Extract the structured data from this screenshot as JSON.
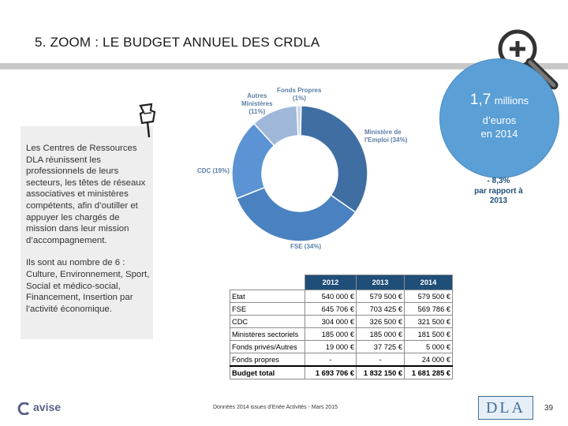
{
  "slide": {
    "title": "5. ZOOM : LE BUDGET ANNUEL DES CRDLA"
  },
  "left_panel": {
    "paragraph1": "Les Centres de Ressources DLA réunissent les professionnels de leurs secteurs, les têtes de réseaux associatives et ministères compétents, afin d’outiller et appuyer les chargés de mission dans leur mission d’accompagnement.",
    "paragraph2": "Ils sont au nombre de 6 : Culture, Environnement, Sport, Social et médico-social, Financement, Insertion par l’activité économique."
  },
  "highlight": {
    "amount": "1,7",
    "unit": "millions",
    "line2": "d’euros",
    "line3": "en 2014",
    "change_line1": "- 8,3%",
    "change_line2": "par rapport à",
    "change_line3": "2013",
    "circle_color": "#5a9fd6"
  },
  "chart_data": {
    "type": "pie",
    "title": "",
    "slices": [
      {
        "label": "Ministère de l'Emploi (34%)",
        "value": 34,
        "color": "#3f6ea3"
      },
      {
        "label": "FSE (34%)",
        "value": 34,
        "color": "#4a82c1"
      },
      {
        "label": "CDC (19%)",
        "value": 19,
        "color": "#5b93d4"
      },
      {
        "label": "Autres Ministères (11%)",
        "value": 11,
        "color": "#9fb8da"
      },
      {
        "label": "Fonds Propres (1%)",
        "value": 1,
        "color": "#c9d6e8"
      }
    ],
    "labels": {
      "emploi_line1": "Ministère de",
      "emploi_line2": "l'Emploi (34%)",
      "fse": "FSE (34%)",
      "cdc": "CDC (19%)",
      "autres_line1": "Autres",
      "autres_line2": "Ministères",
      "autres_line3": "(11%)",
      "propres_line1": "Fonds Propres",
      "propres_line2": "(1%)"
    }
  },
  "table": {
    "headers": [
      "2012",
      "2013",
      "2014"
    ],
    "rows": [
      {
        "label": "Etat",
        "v2012": "540 000 €",
        "v2013": "579 500 €",
        "v2014": "579 500 €"
      },
      {
        "label": "FSE",
        "v2012": "645 706 €",
        "v2013": "703 425 €",
        "v2014": "569 786 €"
      },
      {
        "label": "CDC",
        "v2012": "304 000 €",
        "v2013": "326 500 €",
        "v2014": "321 500 €"
      },
      {
        "label": "Ministères sectoriels",
        "v2012": "185 000 €",
        "v2013": "185 000 €",
        "v2014": "181 500 €"
      },
      {
        "label": "Fonds privés/Autres",
        "v2012": "19 000 €",
        "v2013": "37 725 €",
        "v2014": "5 000 €"
      },
      {
        "label": "Fonds propres",
        "v2012": "-",
        "v2013": "-",
        "v2014": "24 000 €"
      }
    ],
    "total": {
      "label": "Budget total",
      "v2012": "1 693 706 €",
      "v2013": "1 832 150 €",
      "v2014": "1 681 285 €"
    }
  },
  "footer": {
    "brand": "avise",
    "note": "Données 2014 issues d’Enée Activités - Mars 2015",
    "dla_logo_text": "DLA",
    "page_number": "39"
  }
}
